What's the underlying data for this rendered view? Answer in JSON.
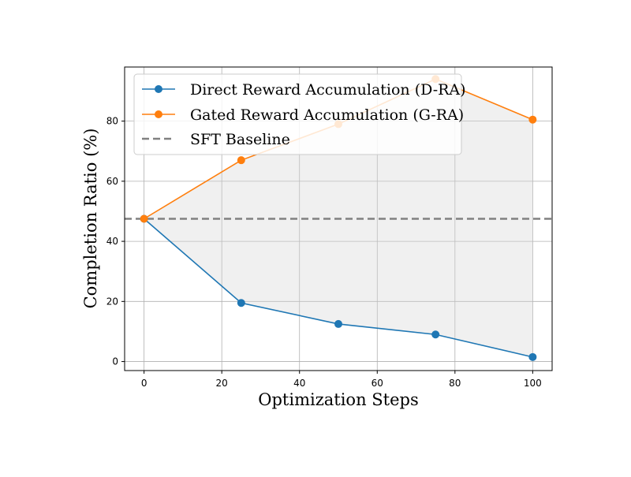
{
  "chart_data": {
    "type": "line",
    "xlabel": "Optimization Steps",
    "ylabel": "Completion Ratio (%)",
    "xlim": [
      -5,
      105
    ],
    "ylim": [
      -3,
      98
    ],
    "xticks": [
      0,
      20,
      40,
      60,
      80,
      100
    ],
    "yticks": [
      0,
      20,
      40,
      60,
      80
    ],
    "grid": true,
    "legend_position": "top-left",
    "series": [
      {
        "name": "Direct Reward Accumulation (D-RA)",
        "color": "#1f77b4",
        "marker": "circle",
        "x": [
          0,
          25,
          50,
          75,
          100
        ],
        "y": [
          47.5,
          19.5,
          12.5,
          9.0,
          1.5
        ]
      },
      {
        "name": "Gated Reward Accumulation (G-RA)",
        "color": "#ff7f0e",
        "marker": "circle",
        "x": [
          0,
          25,
          50,
          75,
          100
        ],
        "y": [
          47.5,
          67.0,
          79.0,
          94.0,
          80.5
        ]
      }
    ],
    "reference_lines": [
      {
        "name": "SFT Baseline",
        "orientation": "horizontal",
        "y": 47.5,
        "color": "#808080",
        "style": "dashed"
      }
    ],
    "fill_between": {
      "between": [
        "D-RA",
        "G-RA"
      ],
      "color": "#d3d3d3",
      "opacity": 0.35
    }
  }
}
